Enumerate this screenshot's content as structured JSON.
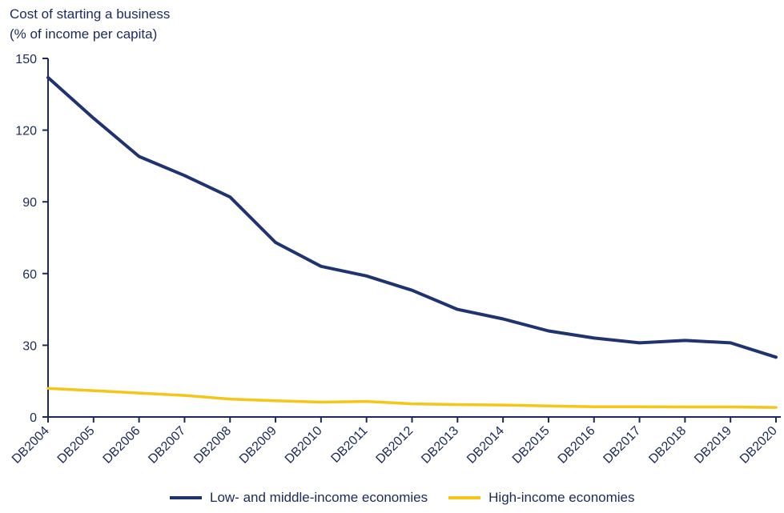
{
  "chart_data": {
    "type": "line",
    "ylabel_lines": [
      "Cost of starting a business",
      "(% of income per capita)"
    ],
    "xlabel": "",
    "categories": [
      "DB2004",
      "DB2005",
      "DB2006",
      "DB2007",
      "DB2008",
      "DB2009",
      "DB2010",
      "DB2011",
      "DB2012",
      "DB2013",
      "DB2014",
      "DB2015",
      "DB2016",
      "DB2017",
      "DB2018",
      "DB2019",
      "DB2020"
    ],
    "ylim": [
      0,
      150
    ],
    "yticks": [
      0,
      30,
      60,
      90,
      120,
      150
    ],
    "grid": false,
    "legend_position": "bottom",
    "series": [
      {
        "name": "Low- and middle-income economies",
        "color": "#1f3370",
        "values": [
          142,
          125,
          109,
          101,
          92,
          73,
          63,
          59,
          53,
          45,
          41,
          36,
          33,
          31,
          32,
          31,
          25
        ]
      },
      {
        "name": "High-income economies",
        "color": "#f5c518",
        "values": [
          12,
          11,
          10,
          9,
          7.5,
          6.8,
          6.2,
          6.5,
          5.5,
          5.2,
          5.0,
          4.6,
          4.3,
          4.3,
          4.2,
          4.2,
          4.0
        ]
      }
    ]
  }
}
